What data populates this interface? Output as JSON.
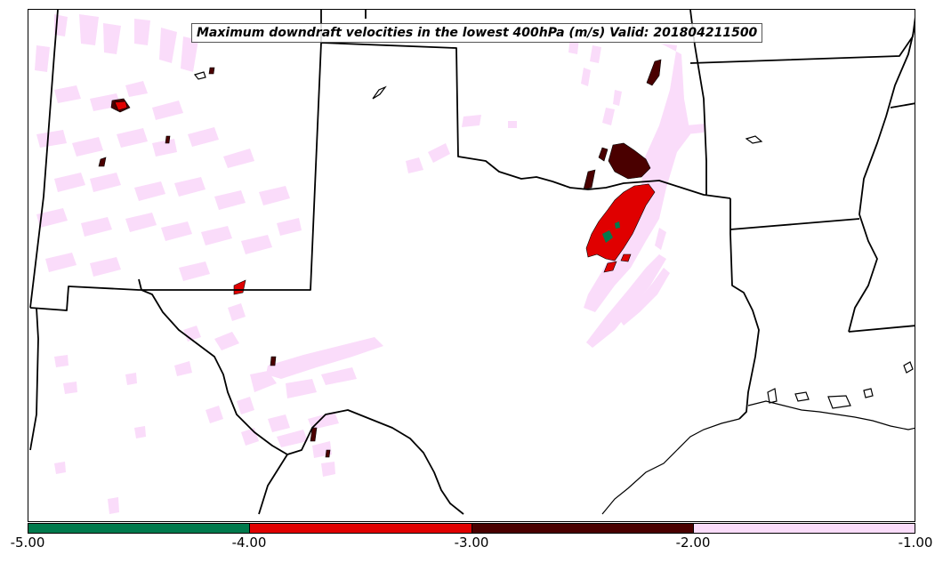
{
  "title": "Maximum downdraft velocities in the lowest 400hPa (m/s) Valid: 201804211500",
  "colorbar": {
    "ticks": [
      "-5.00",
      "-4.00",
      "-3.00",
      "-2.00",
      "-1.00"
    ],
    "bins": [
      {
        "min": -5.0,
        "max": -4.0,
        "color": "#007a4d"
      },
      {
        "min": -4.0,
        "max": -3.0,
        "color": "#e00000"
      },
      {
        "min": -3.0,
        "max": -2.0,
        "color": "#4a0000"
      },
      {
        "min": -2.0,
        "max": -1.0,
        "color": "#fadcfa"
      }
    ]
  },
  "colors": {
    "weak": "#fadcfa",
    "moderate": "#4a0000",
    "strong": "#e00000",
    "extreme": "#007a4d",
    "boundaries": "#000000"
  }
}
